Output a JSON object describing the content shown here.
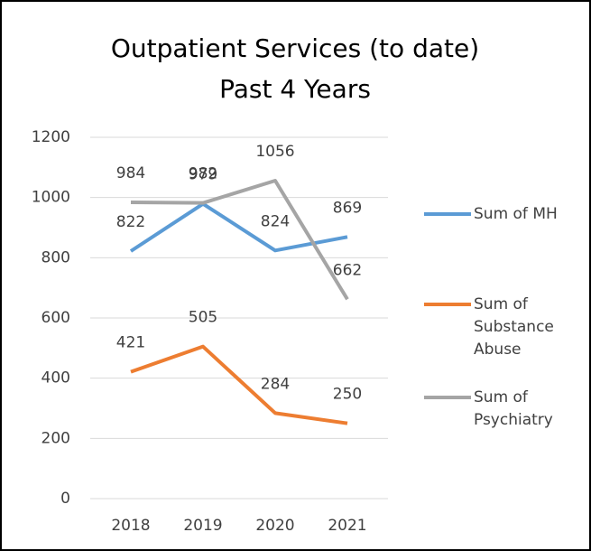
{
  "chart_data": {
    "type": "line",
    "title": "Outpatient Services (to date)",
    "subtitle": "Past 4 Years",
    "categories": [
      "2018",
      "2019",
      "2020",
      "2021"
    ],
    "series": [
      {
        "name": "Sum of MH",
        "color": "#5b9bd5",
        "values": [
          822,
          979,
          824,
          869
        ]
      },
      {
        "name": "Sum of Substance Abuse",
        "color": "#ed7d31",
        "values": [
          421,
          505,
          284,
          250
        ]
      },
      {
        "name": "Sum of Psychiatry",
        "color": "#a5a5a5",
        "values": [
          984,
          982,
          1056,
          662
        ]
      }
    ],
    "ylim": [
      0,
      1200
    ],
    "yticks": [
      0,
      200,
      400,
      600,
      800,
      1000,
      1200
    ],
    "grid": true,
    "legend": "right"
  }
}
